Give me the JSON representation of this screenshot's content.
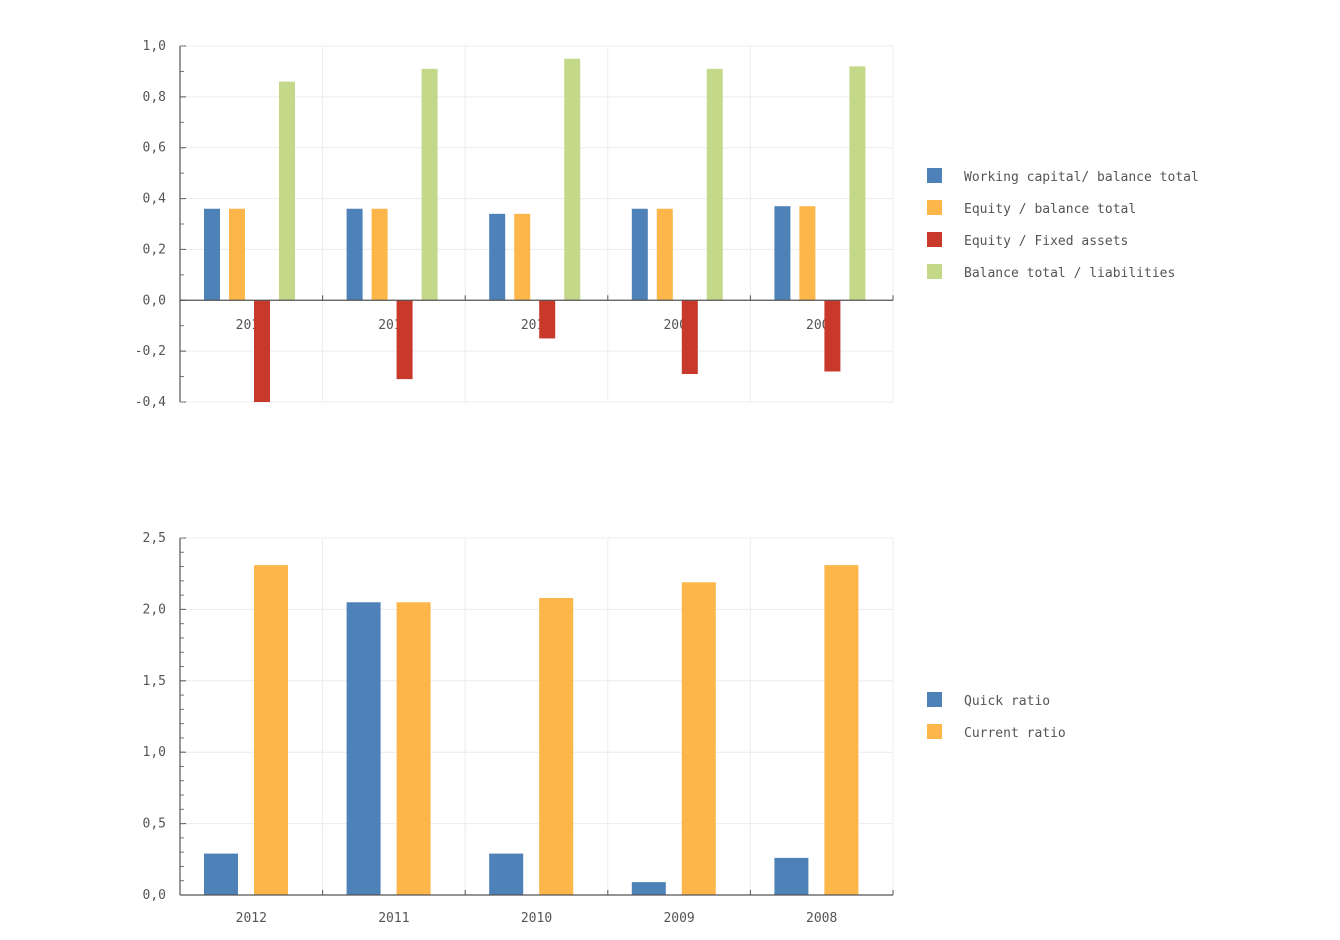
{
  "chart_data": [
    {
      "type": "bar",
      "title": "",
      "xlabel": "",
      "ylabel": "",
      "categories": [
        "2012",
        "2011",
        "2010",
        "2009",
        "2008"
      ],
      "ylim": [
        -0.4,
        1.0
      ],
      "yticks": [
        -0.4,
        -0.2,
        0.0,
        0.2,
        0.4,
        0.6,
        0.8,
        1.0
      ],
      "ytick_labels": [
        "-0,4",
        "-0,2",
        "0,0",
        "0,2",
        "0,4",
        "0,6",
        "0,8",
        "1,0"
      ],
      "grid": true,
      "legend_position": "right",
      "series": [
        {
          "name": "Working capital/ balance total",
          "color": "#4f81b9",
          "values": [
            0.36,
            0.36,
            0.34,
            0.36,
            0.37
          ]
        },
        {
          "name": "Equity / balance total",
          "color": "#fcb64a",
          "values": [
            0.36,
            0.36,
            0.34,
            0.36,
            0.37
          ]
        },
        {
          "name": "Equity / Fixed assets",
          "color": "#c8392b",
          "values": [
            -0.4,
            -0.31,
            -0.15,
            -0.29,
            -0.28
          ]
        },
        {
          "name": "Balance total / liabilities",
          "color": "#c3d888",
          "values": [
            0.86,
            0.91,
            0.95,
            0.91,
            0.92
          ]
        }
      ]
    },
    {
      "type": "bar",
      "title": "",
      "xlabel": "",
      "ylabel": "",
      "categories": [
        "2012",
        "2011",
        "2010",
        "2009",
        "2008"
      ],
      "ylim": [
        0.0,
        2.5
      ],
      "yticks": [
        0.0,
        0.5,
        1.0,
        1.5,
        2.0,
        2.5
      ],
      "ytick_labels": [
        "0,0",
        "0,5",
        "1,0",
        "1,5",
        "2,0",
        "2,5"
      ],
      "grid": true,
      "legend_position": "right",
      "series": [
        {
          "name": "Quick ratio",
          "color": "#4f81b9",
          "values": [
            0.29,
            2.05,
            0.29,
            0.09,
            0.26
          ]
        },
        {
          "name": "Current ratio",
          "color": "#fcb64a",
          "values": [
            2.31,
            2.05,
            2.08,
            2.19,
            2.31
          ]
        }
      ]
    }
  ]
}
